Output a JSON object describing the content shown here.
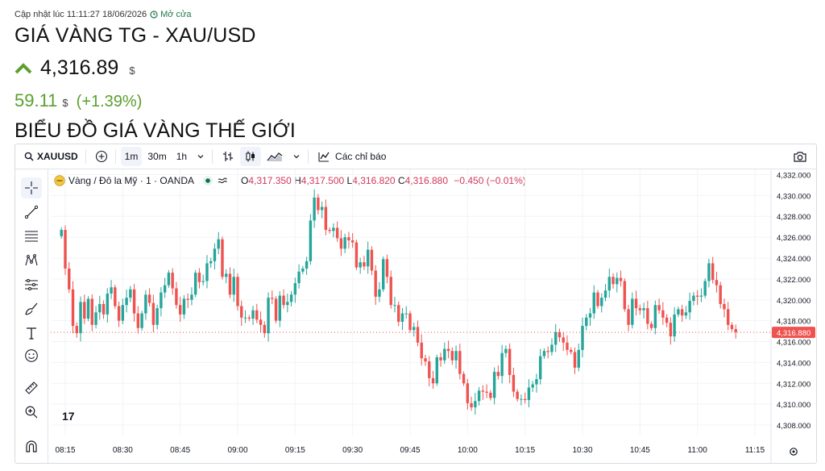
{
  "header": {
    "updated": "Cập nhật lúc 11:11:27 18/06/2026",
    "market_status": "Mở cửa",
    "title": "GIÁ VÀNG TG - XAU/USD",
    "price": "4,316.89",
    "price_unit": "$",
    "change": "59.11",
    "change_unit": "$",
    "change_pct": "(+1.39%)",
    "section_title": "BIỂU ĐỒ GIÁ VÀNG THẾ GIỚI"
  },
  "toolbar": {
    "symbol": "XAUUSD",
    "intervals": [
      "1m",
      "30m",
      "1h"
    ],
    "indicators_label": "Các chỉ báo"
  },
  "legend": {
    "name": "Vàng / Đô la Mỹ · 1 · OANDA",
    "open_label": "O",
    "open": "4,317.350",
    "high_label": "H",
    "high": "4,317.500",
    "low_label": "L",
    "low": "4,316.820",
    "close_label": "C",
    "close": "4,316.880",
    "change": "−0.450 (−0.01%)"
  },
  "colors": {
    "up": "#26a69a",
    "down": "#ef5350",
    "accent_green": "#5aa02c",
    "price_tag": "#ef5350"
  },
  "chart_data": {
    "type": "candlestick",
    "x_ticks": [
      "08:15",
      "08:30",
      "08:45",
      "09:00",
      "09:15",
      "09:30",
      "09:45",
      "10:00",
      "10:15",
      "10:30",
      "10:45",
      "11:00",
      "11:15"
    ],
    "y_ticks": [
      "4,332.000",
      "4,330.000",
      "4,328.000",
      "4,326.000",
      "4,324.000",
      "4,322.000",
      "4,320.000",
      "4,318.000",
      "4,316.000",
      "4,314.000",
      "4,312.000",
      "4,310.000",
      "4,308.000"
    ],
    "ylim": [
      4307,
      4332.5
    ],
    "last_price": "4,316.880",
    "last_value": 4316.88,
    "start_time": "08:14",
    "end_time": "11:10",
    "series": [
      {
        "name": "Vàng / Đô la Mỹ",
        "close": [
          4326.7,
          4323.0,
          4321.0,
          4317.5,
          4316.8,
          4319.8,
          4318.2,
          4320.1,
          4317.6,
          4318.8,
          4319.6,
          4318.6,
          4320.6,
          4321.2,
          4319.4,
          4318.0,
          4319.5,
          4320.2,
          4321.0,
          4318.7,
          4317.3,
          4318.7,
          4320.5,
          4319.7,
          4317.6,
          4319.2,
          4320.7,
          4321.4,
          4322.6,
          4321.1,
          4319.5,
          4318.6,
          4320.1,
          4320.0,
          4320.5,
          4322.6,
          4321.7,
          4321.8,
          4323.5,
          4323.7,
          4324.9,
          4325.8,
          4322.2,
          4322.5,
          4320.5,
          4322.2,
          4319.4,
          4318.3,
          4318.3,
          4318.2,
          4319.0,
          4318.1,
          4317.6,
          4316.8,
          4320.2,
          4320.1,
          4318.0,
          4320.4,
          4319.5,
          4319.8,
          4320.5,
          4321.6,
          4322.7,
          4323.0,
          4323.7,
          4327.6,
          4329.8,
          4328.6,
          4328.9,
          4326.7,
          4326.6,
          4326.9,
          4325.9,
          4324.9,
          4326.0,
          4325.7,
          4325.5,
          4323.1,
          4323.6,
          4323.2,
          4324.8,
          4322.8,
          4320.3,
          4321.0,
          4323.9,
          4322.2,
          4319.5,
          4319.5,
          4317.9,
          4318.7,
          4318.7,
          4317.1,
          4317.4,
          4315.9,
          4314.4,
          4314.1,
          4312.5,
          4312.0,
          4314.5,
          4314.2,
          4315.3,
          4315.1,
          4314.2,
          4315.1,
          4312.9,
          4312.0,
          4310.1,
          4309.7,
          4310.3,
          4311.3,
          4311.2,
          4311.1,
          4310.6,
          4313.1,
          4312.7,
          4314.9,
          4315.3,
          4312.8,
          4311.2,
          4310.5,
          4310.5,
          4310.4,
          4311.6,
          4311.9,
          4312.4,
          4314.6,
          4315.1,
          4315.0,
          4315.7,
          4316.9,
          4316.4,
          4315.9,
          4315.2,
          4315.0,
          4313.5,
          4315.2,
          4317.5,
          4318.3,
          4318.7,
          4320.7,
          4319.4,
          4320.2,
          4320.9,
          4322.2,
          4321.5,
          4322.1,
          4321.8,
          4319.1,
          4317.6,
          4320.1,
          4319.2,
          4319.0,
          4319.2,
          4317.7,
          4317.3,
          4319.5,
          4319.0,
          4318.3,
          4317.8,
          4316.5,
          4318.6,
          4319.1,
          4318.5,
          4318.8,
          4319.9,
          4320.4,
          4320.3,
          4320.4,
          4321.8,
          4323.5,
          4321.9,
          4321.4,
          4319.6,
          4319.1,
          4317.6,
          4317.2,
          4316.9
        ]
      }
    ]
  }
}
